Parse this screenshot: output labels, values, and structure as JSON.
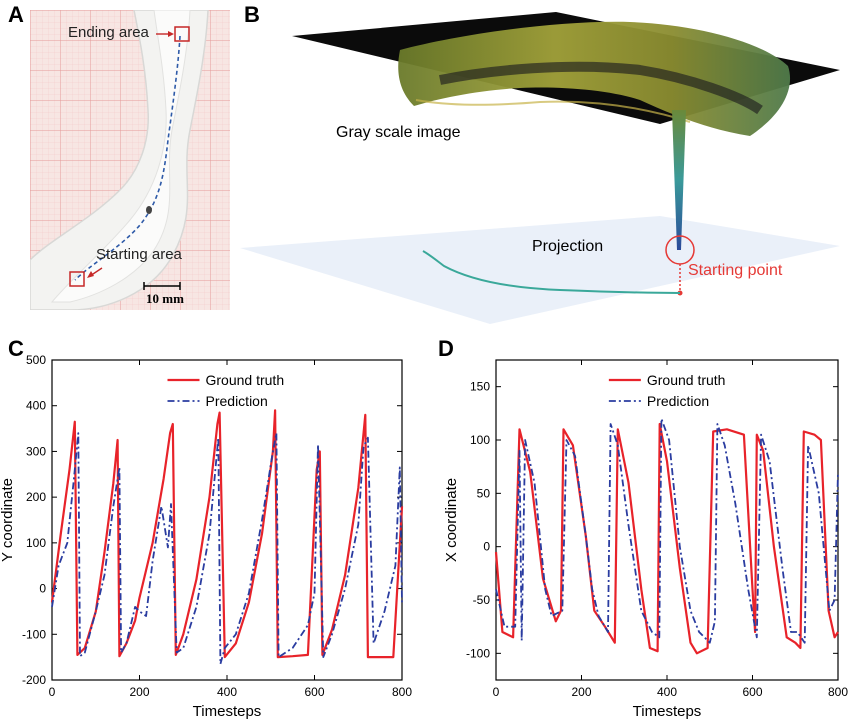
{
  "panels": {
    "A": {
      "letter": "A",
      "ending_label": "Ending area",
      "starting_label": "Starting area",
      "scale_bar_label": "10 mm"
    },
    "B": {
      "letter": "B",
      "gray_scale_label": "Gray scale image",
      "projection_label": "Projection",
      "starting_point_label": "Starting point"
    }
  },
  "colors": {
    "ground_truth": "#e8232a",
    "prediction": "#2a3ca0",
    "trajectory": "#3aa89a",
    "marker": "#c62828",
    "grid": "#e9a8a8"
  },
  "chart_data": [
    {
      "panel": "C",
      "type": "line",
      "xlabel": "Timesteps",
      "ylabel": "Y coordinate",
      "xlim": [
        0,
        800
      ],
      "ylim": [
        -200,
        500
      ],
      "xticks": [
        0,
        200,
        400,
        600,
        800
      ],
      "yticks": [
        -200,
        -100,
        0,
        100,
        200,
        300,
        400,
        500
      ],
      "legend": "top-center",
      "series": [
        {
          "name": "Ground truth",
          "style": "solid",
          "x": [
            0,
            20,
            40,
            52,
            58,
            75,
            100,
            120,
            140,
            150,
            154,
            170,
            190,
            200,
            230,
            255,
            270,
            276,
            283,
            300,
            330,
            360,
            378,
            383,
            395,
            420,
            450,
            480,
            505,
            510,
            516,
            550,
            585,
            605,
            612,
            618,
            640,
            670,
            700,
            716,
            722,
            750,
            780,
            800
          ],
          "y": [
            -30,
            120,
            260,
            365,
            -145,
            -130,
            -50,
            80,
            230,
            325,
            -148,
            -120,
            -70,
            -20,
            100,
            240,
            340,
            360,
            -145,
            -100,
            20,
            200,
            360,
            385,
            -150,
            -120,
            -30,
            120,
            300,
            390,
            -150,
            -148,
            -145,
            260,
            300,
            -145,
            -90,
            30,
            220,
            380,
            -150,
            -150,
            -150,
            180
          ]
        },
        {
          "name": "Prediction",
          "style": "dashdot",
          "x": [
            0,
            15,
            35,
            50,
            60,
            64,
            75,
            100,
            120,
            140,
            154,
            158,
            170,
            190,
            200,
            215,
            230,
            250,
            265,
            272,
            285,
            300,
            330,
            360,
            380,
            385,
            395,
            420,
            450,
            480,
            505,
            513,
            518,
            550,
            585,
            600,
            608,
            620,
            640,
            670,
            700,
            712,
            722,
            735,
            760,
            785,
            795,
            800
          ],
          "y": [
            -40,
            50,
            100,
            240,
            340,
            -148,
            -140,
            -50,
            30,
            180,
            265,
            -140,
            -120,
            -40,
            -50,
            -60,
            60,
            180,
            90,
            185,
            -140,
            -130,
            -40,
            120,
            330,
            -165,
            -130,
            -100,
            -10,
            150,
            300,
            340,
            -150,
            -130,
            -80,
            -10,
            315,
            -150,
            -100,
            0,
            140,
            310,
            330,
            -120,
            -50,
            50,
            265,
            -30
          ]
        }
      ]
    },
    {
      "panel": "D",
      "type": "line",
      "xlabel": "Timesteps",
      "ylabel": "X coordinate",
      "xlim": [
        0,
        800
      ],
      "ylim": [
        -125,
        175
      ],
      "xticks": [
        0,
        200,
        400,
        600,
        800
      ],
      "yticks": [
        -100,
        -50,
        0,
        50,
        100,
        150
      ],
      "legend": "top-center",
      "series": [
        {
          "name": "Ground truth",
          "style": "solid",
          "x": [
            0,
            15,
            40,
            55,
            80,
            110,
            140,
            152,
            158,
            180,
            210,
            230,
            255,
            278,
            285,
            310,
            340,
            360,
            378,
            383,
            400,
            430,
            455,
            470,
            495,
            508,
            540,
            580,
            600,
            606,
            610,
            625,
            650,
            680,
            700,
            712,
            720,
            745,
            760,
            778,
            792,
            800
          ],
          "y": [
            -5,
            -80,
            -85,
            110,
            70,
            -30,
            -70,
            -60,
            110,
            95,
            10,
            -60,
            -75,
            -90,
            110,
            60,
            -40,
            -95,
            -98,
            115,
            80,
            -20,
            -90,
            -100,
            -95,
            108,
            110,
            105,
            -40,
            -80,
            105,
            90,
            0,
            -85,
            -90,
            -95,
            108,
            105,
            100,
            -60,
            -85,
            -80
          ]
        },
        {
          "name": "Prediction",
          "style": "dashdot",
          "x": [
            0,
            20,
            45,
            55,
            60,
            68,
            90,
            115,
            130,
            155,
            165,
            185,
            210,
            225,
            240,
            262,
            268,
            285,
            310,
            340,
            365,
            382,
            387,
            405,
            430,
            455,
            475,
            500,
            512,
            518,
            535,
            560,
            590,
            610,
            620,
            640,
            670,
            690,
            705,
            722,
            730,
            755,
            780,
            792,
            800
          ],
          "y": [
            -40,
            -75,
            -75,
            90,
            -88,
            100,
            60,
            -40,
            -65,
            -60,
            100,
            85,
            10,
            -40,
            -65,
            -80,
            115,
            95,
            20,
            -60,
            -80,
            -85,
            120,
            100,
            0,
            -60,
            -80,
            -90,
            -70,
            115,
            95,
            40,
            -40,
            -85,
            105,
            80,
            -20,
            -80,
            -80,
            -90,
            95,
            50,
            -60,
            -50,
            70
          ]
        }
      ]
    }
  ]
}
